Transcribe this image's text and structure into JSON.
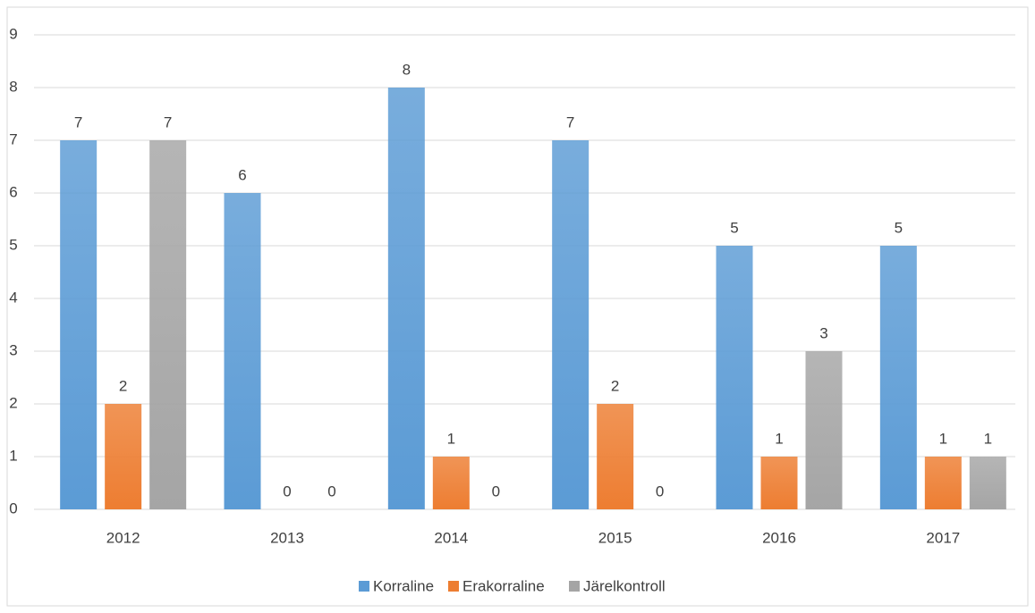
{
  "chart_data": {
    "type": "bar",
    "categories": [
      "2012",
      "2013",
      "2014",
      "2015",
      "2016",
      "2017"
    ],
    "series": [
      {
        "name": "Korraline",
        "color": "#5b9bd5",
        "values": [
          7,
          6,
          8,
          7,
          5,
          5
        ]
      },
      {
        "name": "Erakorraline",
        "color": "#ed7d31",
        "values": [
          2,
          0,
          1,
          2,
          1,
          1
        ]
      },
      {
        "name": "Järelkontroll",
        "color": "#a5a5a5",
        "values": [
          7,
          0,
          0,
          0,
          3,
          1
        ]
      }
    ],
    "ylim": [
      0,
      9
    ],
    "yticks": [
      0,
      1,
      2,
      3,
      4,
      5,
      6,
      7,
      8,
      9
    ],
    "grid": true,
    "legend": "bottom"
  }
}
